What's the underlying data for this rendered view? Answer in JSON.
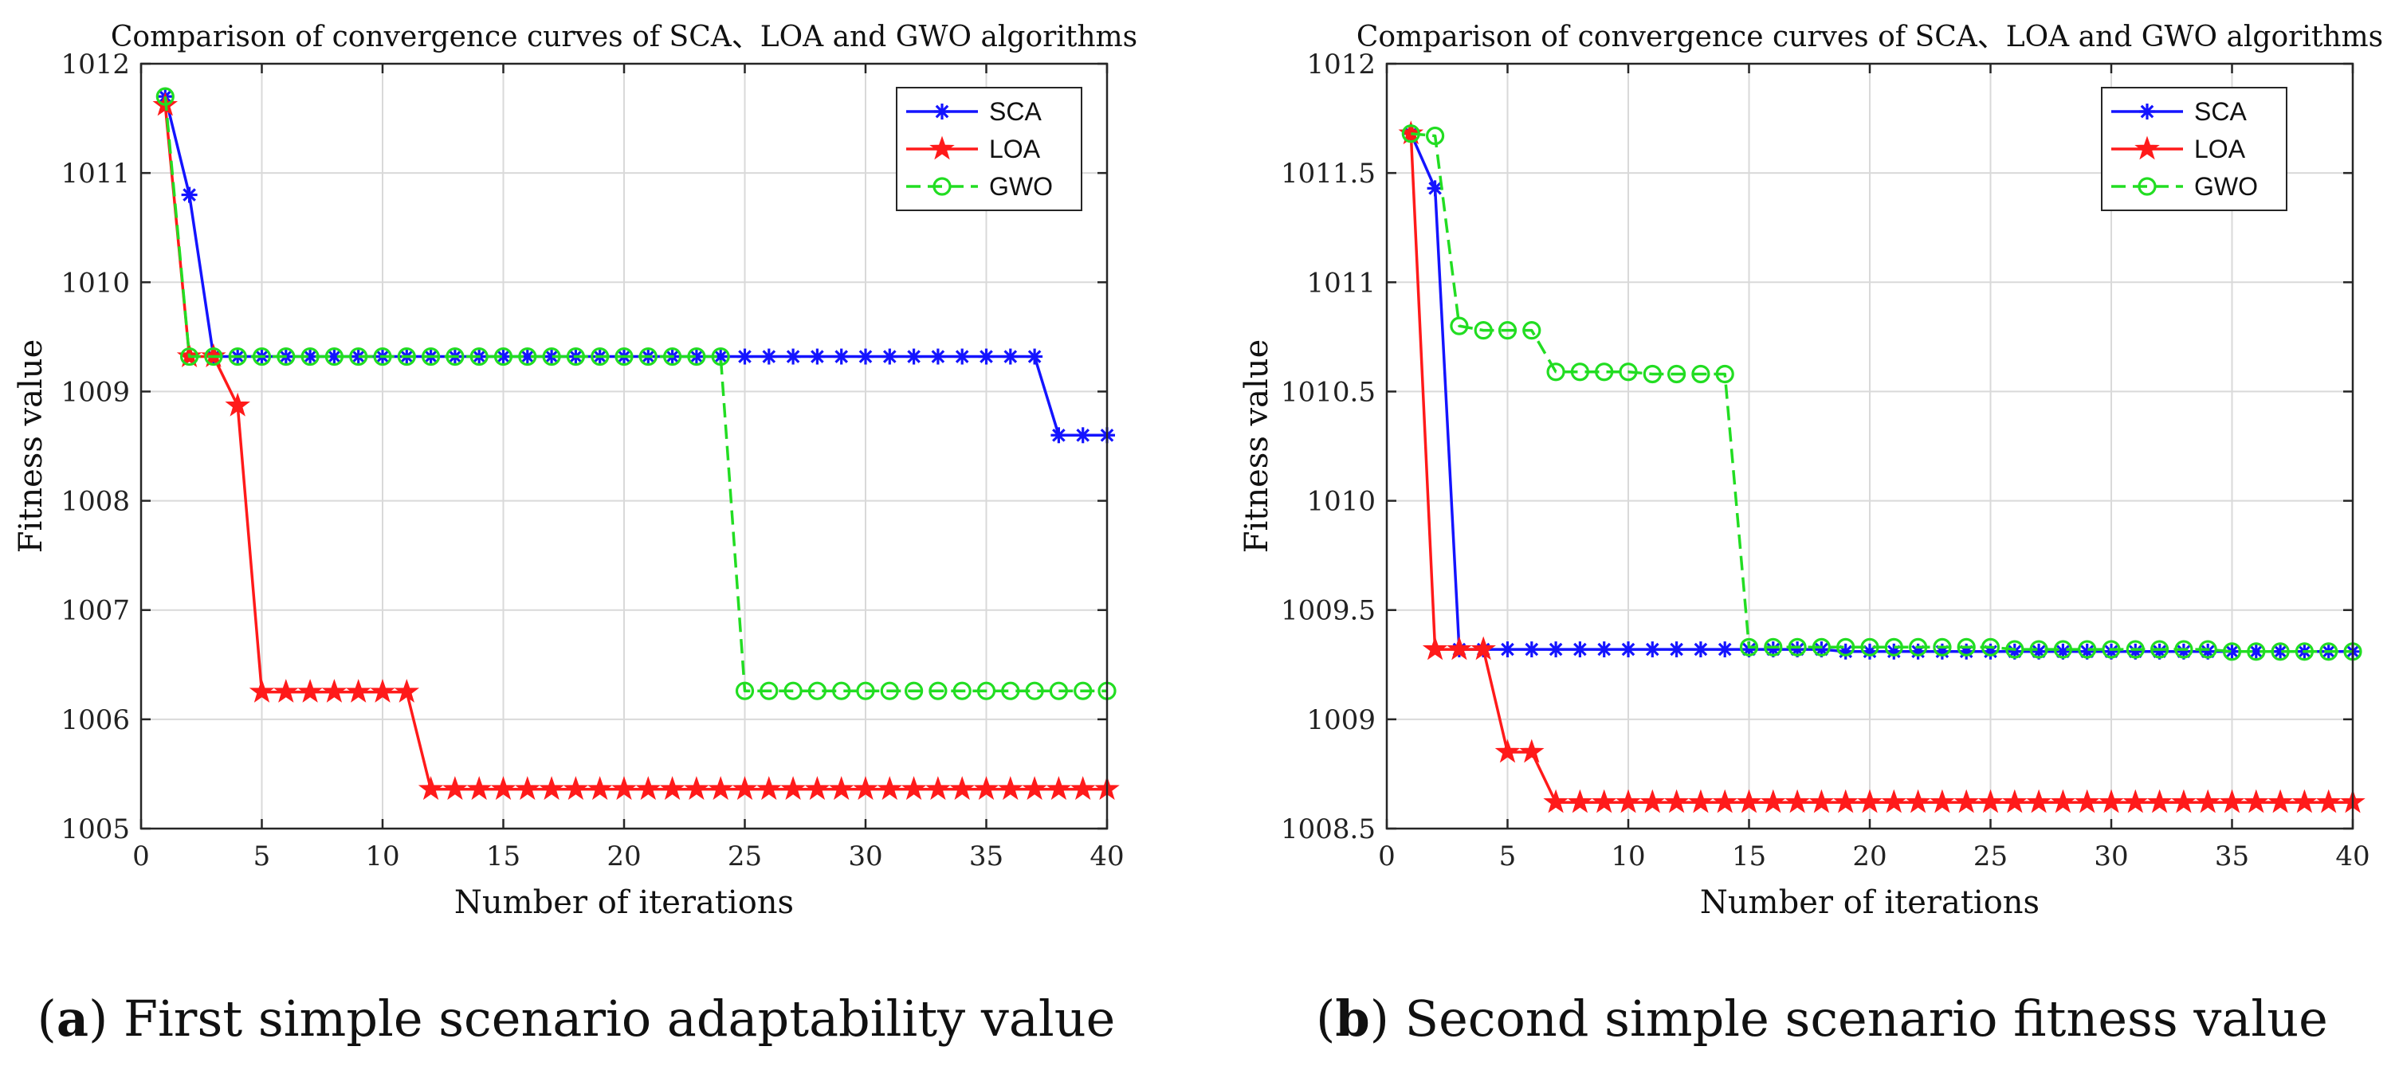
{
  "chart_data": [
    {
      "type": "line",
      "title": "Comparison of convergence curves of SCA、LOA and GWO algorithms",
      "xlabel": "Number of iterations",
      "ylabel": "Fitness value",
      "xlim": [
        0,
        40
      ],
      "ylim": [
        1005,
        1012
      ],
      "xticks": [
        0,
        5,
        10,
        15,
        20,
        25,
        30,
        35,
        40
      ],
      "yticks": [
        1005,
        1006,
        1007,
        1008,
        1009,
        1010,
        1011,
        1012
      ],
      "ytick_labels": [
        "1005",
        "1006",
        "1007",
        "1008",
        "1009",
        "1010",
        "1011",
        "1012"
      ],
      "grid": true,
      "legend_position": "top-right",
      "caption_letter": "a",
      "caption_text": "First simple scenario adaptability value",
      "series": [
        {
          "name": "SCA",
          "color": "#1414ff",
          "marker": "asterisk",
          "line": "solid",
          "x": [
            1,
            2,
            3,
            4,
            5,
            6,
            7,
            8,
            9,
            10,
            11,
            12,
            13,
            14,
            15,
            16,
            17,
            18,
            19,
            20,
            21,
            22,
            23,
            24,
            25,
            26,
            27,
            28,
            29,
            30,
            31,
            32,
            33,
            34,
            35,
            36,
            37,
            38,
            39,
            40
          ],
          "values": [
            1011.7,
            1010.8,
            1009.32,
            1009.32,
            1009.32,
            1009.32,
            1009.32,
            1009.32,
            1009.32,
            1009.32,
            1009.32,
            1009.32,
            1009.32,
            1009.32,
            1009.32,
            1009.32,
            1009.32,
            1009.32,
            1009.32,
            1009.32,
            1009.32,
            1009.32,
            1009.32,
            1009.32,
            1009.32,
            1009.32,
            1009.32,
            1009.32,
            1009.32,
            1009.32,
            1009.32,
            1009.32,
            1009.32,
            1009.32,
            1009.32,
            1009.32,
            1009.32,
            1008.6,
            1008.6,
            1008.6
          ]
        },
        {
          "name": "LOA",
          "color": "#ff1a1a",
          "marker": "star",
          "line": "solid",
          "x": [
            1,
            2,
            3,
            4,
            5,
            6,
            7,
            8,
            9,
            10,
            11,
            12,
            13,
            14,
            15,
            16,
            17,
            18,
            19,
            20,
            21,
            22,
            23,
            24,
            25,
            26,
            27,
            28,
            29,
            30,
            31,
            32,
            33,
            34,
            35,
            36,
            37,
            38,
            39,
            40
          ],
          "values": [
            1011.62,
            1009.32,
            1009.32,
            1008.87,
            1006.25,
            1006.25,
            1006.25,
            1006.25,
            1006.25,
            1006.25,
            1006.25,
            1005.36,
            1005.36,
            1005.36,
            1005.36,
            1005.36,
            1005.36,
            1005.36,
            1005.36,
            1005.36,
            1005.36,
            1005.36,
            1005.36,
            1005.36,
            1005.36,
            1005.36,
            1005.36,
            1005.36,
            1005.36,
            1005.36,
            1005.36,
            1005.36,
            1005.36,
            1005.36,
            1005.36,
            1005.36,
            1005.36,
            1005.36,
            1005.36,
            1005.36
          ]
        },
        {
          "name": "GWO",
          "color": "#22dd22",
          "marker": "circle",
          "line": "dashed",
          "x": [
            1,
            2,
            3,
            4,
            5,
            6,
            7,
            8,
            9,
            10,
            11,
            12,
            13,
            14,
            15,
            16,
            17,
            18,
            19,
            20,
            21,
            22,
            23,
            24,
            25,
            26,
            27,
            28,
            29,
            30,
            31,
            32,
            33,
            34,
            35,
            36,
            37,
            38,
            39,
            40
          ],
          "values": [
            1011.7,
            1009.32,
            1009.32,
            1009.32,
            1009.32,
            1009.32,
            1009.32,
            1009.32,
            1009.32,
            1009.32,
            1009.32,
            1009.32,
            1009.32,
            1009.32,
            1009.32,
            1009.32,
            1009.32,
            1009.32,
            1009.32,
            1009.32,
            1009.32,
            1009.32,
            1009.32,
            1009.32,
            1006.26,
            1006.26,
            1006.26,
            1006.26,
            1006.26,
            1006.26,
            1006.26,
            1006.26,
            1006.26,
            1006.26,
            1006.26,
            1006.26,
            1006.26,
            1006.26,
            1006.26,
            1006.26
          ]
        }
      ]
    },
    {
      "type": "line",
      "title": "Comparison of convergence curves of SCA、LOA and GWO algorithms",
      "xlabel": "Number of iterations",
      "ylabel": "Fitness value",
      "xlim": [
        0,
        40
      ],
      "ylim": [
        1008.5,
        1012
      ],
      "xticks": [
        0,
        5,
        10,
        15,
        20,
        25,
        30,
        35,
        40
      ],
      "yticks": [
        1008.5,
        1009,
        1009.5,
        1010,
        1010.5,
        1011,
        1011.5,
        1012
      ],
      "ytick_labels": [
        "1008.5",
        "1009",
        "1009.5",
        "1010",
        "1010.5",
        "1011",
        "1011.5",
        "1012"
      ],
      "grid": true,
      "legend_position": "top-right",
      "caption_letter": "b",
      "caption_text": "Second simple scenario fitness value",
      "series": [
        {
          "name": "SCA",
          "color": "#1414ff",
          "marker": "asterisk",
          "line": "solid",
          "x": [
            1,
            2,
            3,
            4,
            5,
            6,
            7,
            8,
            9,
            10,
            11,
            12,
            13,
            14,
            15,
            16,
            17,
            18,
            19,
            20,
            21,
            22,
            23,
            24,
            25,
            26,
            27,
            28,
            29,
            30,
            31,
            32,
            33,
            34,
            35,
            36,
            37,
            38,
            39,
            40
          ],
          "values": [
            1011.68,
            1011.43,
            1009.32,
            1009.32,
            1009.32,
            1009.32,
            1009.32,
            1009.32,
            1009.32,
            1009.32,
            1009.32,
            1009.32,
            1009.32,
            1009.32,
            1009.32,
            1009.32,
            1009.32,
            1009.32,
            1009.31,
            1009.31,
            1009.31,
            1009.31,
            1009.31,
            1009.31,
            1009.31,
            1009.31,
            1009.31,
            1009.31,
            1009.31,
            1009.31,
            1009.31,
            1009.31,
            1009.31,
            1009.31,
            1009.31,
            1009.31,
            1009.31,
            1009.31,
            1009.31,
            1009.31
          ]
        },
        {
          "name": "LOA",
          "color": "#ff1a1a",
          "marker": "star",
          "line": "solid",
          "x": [
            1,
            2,
            3,
            4,
            5,
            6,
            7,
            8,
            9,
            10,
            11,
            12,
            13,
            14,
            15,
            16,
            17,
            18,
            19,
            20,
            21,
            22,
            23,
            24,
            25,
            26,
            27,
            28,
            29,
            30,
            31,
            32,
            33,
            34,
            35,
            36,
            37,
            38,
            39,
            40
          ],
          "values": [
            1011.68,
            1009.32,
            1009.32,
            1009.32,
            1008.85,
            1008.85,
            1008.62,
            1008.62,
            1008.62,
            1008.62,
            1008.62,
            1008.62,
            1008.62,
            1008.62,
            1008.62,
            1008.62,
            1008.62,
            1008.62,
            1008.62,
            1008.62,
            1008.62,
            1008.62,
            1008.62,
            1008.62,
            1008.62,
            1008.62,
            1008.62,
            1008.62,
            1008.62,
            1008.62,
            1008.62,
            1008.62,
            1008.62,
            1008.62,
            1008.62,
            1008.62,
            1008.62,
            1008.62,
            1008.62,
            1008.62
          ]
        },
        {
          "name": "GWO",
          "color": "#22dd22",
          "marker": "circle",
          "line": "dashed",
          "x": [
            1,
            2,
            3,
            4,
            5,
            6,
            7,
            8,
            9,
            10,
            11,
            12,
            13,
            14,
            15,
            16,
            17,
            18,
            19,
            20,
            21,
            22,
            23,
            24,
            25,
            26,
            27,
            28,
            29,
            30,
            31,
            32,
            33,
            34,
            35,
            36,
            37,
            38,
            39,
            40
          ],
          "values": [
            1011.68,
            1011.67,
            1010.8,
            1010.78,
            1010.78,
            1010.78,
            1010.59,
            1010.59,
            1010.59,
            1010.59,
            1010.58,
            1010.58,
            1010.58,
            1010.58,
            1009.33,
            1009.33,
            1009.33,
            1009.33,
            1009.33,
            1009.33,
            1009.33,
            1009.33,
            1009.33,
            1009.33,
            1009.33,
            1009.32,
            1009.32,
            1009.32,
            1009.32,
            1009.32,
            1009.32,
            1009.32,
            1009.32,
            1009.32,
            1009.31,
            1009.31,
            1009.31,
            1009.31,
            1009.31,
            1009.31
          ]
        }
      ]
    }
  ]
}
